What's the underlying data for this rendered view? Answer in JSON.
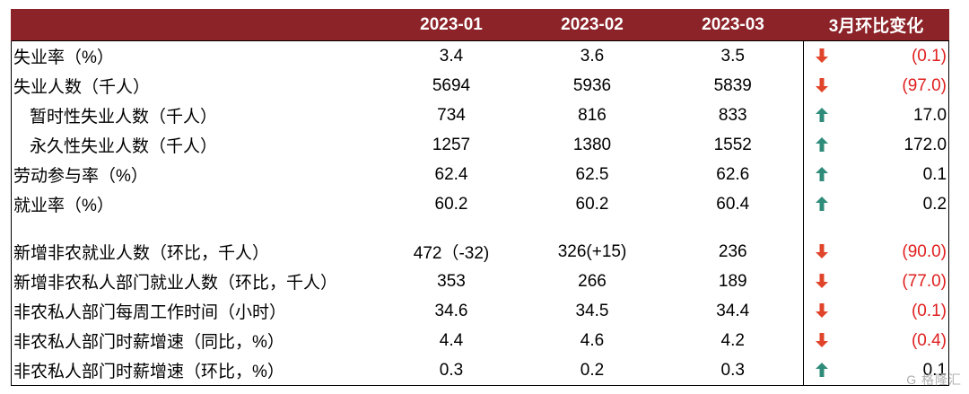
{
  "header": {
    "columns": [
      "",
      "2023-01",
      "2023-02",
      "2023-03",
      "3月环比变化"
    ]
  },
  "colors": {
    "header_bg": "#8c2328",
    "down_arrow": "#e0452b",
    "up_arrow": "#2f8c7a",
    "negative_text": "#e02020"
  },
  "rows": [
    {
      "label": "失业率（%）",
      "v1": "3.4",
      "v2": "3.6",
      "v3": "3.5",
      "direction": "down",
      "change": "(0.1)"
    },
    {
      "label": "失业人数（千人）",
      "v1": "5694",
      "v2": "5936",
      "v3": "5839",
      "direction": "down",
      "change": "(97.0)"
    },
    {
      "label": "暂时性失业人数（千人）",
      "v1": "734",
      "v2": "816",
      "v3": "833",
      "direction": "up",
      "change": "17.0",
      "indent": true
    },
    {
      "label": "永久性失业人数（千人）",
      "v1": "1257",
      "v2": "1380",
      "v3": "1552",
      "direction": "up",
      "change": "172.0",
      "indent": true
    },
    {
      "label": "劳动参与率（%）",
      "v1": "62.4",
      "v2": "62.5",
      "v3": "62.6",
      "direction": "up",
      "change": "0.1"
    },
    {
      "label": "就业率（%）",
      "v1": "60.2",
      "v2": "60.2",
      "v3": "60.4",
      "direction": "up",
      "change": "0.2"
    },
    {
      "spacer": true
    },
    {
      "label": "新增非农就业人数（环比，千人）",
      "v1": "472（-32)",
      "v2": "326(+15)",
      "v3": "236",
      "direction": "down",
      "change": "(90.0)"
    },
    {
      "label": "新增非农私人部门就业人数（环比，千人）",
      "v1": "353",
      "v2": "266",
      "v3": "189",
      "direction": "down",
      "change": "(77.0)"
    },
    {
      "label": "非农私人部门每周工作时间（小时）",
      "v1": "34.6",
      "v2": "34.5",
      "v3": "34.4",
      "direction": "down",
      "change": "(0.1)"
    },
    {
      "label": "非农私人部门时薪增速（同比，%）",
      "v1": "4.4",
      "v2": "4.6",
      "v3": "4.2",
      "direction": "down",
      "change": "(0.4)"
    },
    {
      "label": "非农私人部门时薪增速（环比，%）",
      "v1": "0.3",
      "v2": "0.2",
      "v3": "0.3",
      "direction": "up",
      "change": "0.1"
    }
  ],
  "watermark": "G 格隆汇"
}
